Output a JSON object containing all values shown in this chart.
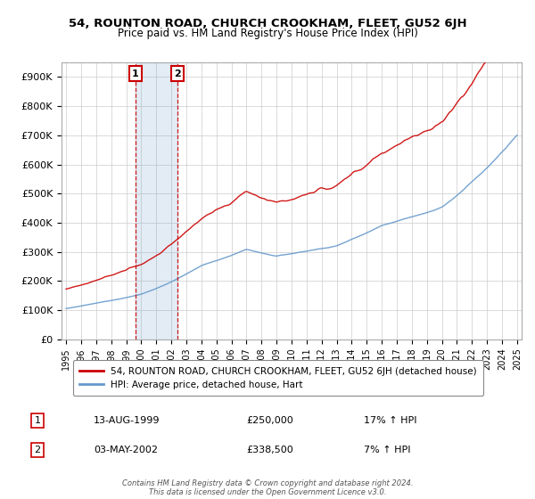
{
  "title": "54, ROUNTON ROAD, CHURCH CROOKHAM, FLEET, GU52 6JH",
  "subtitle": "Price paid vs. HM Land Registry's House Price Index (HPI)",
  "ylim": [
    0,
    950000
  ],
  "yticks": [
    0,
    100000,
    200000,
    300000,
    400000,
    500000,
    600000,
    700000,
    800000,
    900000
  ],
  "ytick_labels": [
    "£0",
    "£100K",
    "£200K",
    "£300K",
    "£400K",
    "£500K",
    "£600K",
    "£700K",
    "£800K",
    "£900K"
  ],
  "legend_line1": "54, ROUNTON ROAD, CHURCH CROOKHAM, FLEET, GU52 6JH (detached house)",
  "legend_line2": "HPI: Average price, detached house, Hart",
  "footnote": "Contains HM Land Registry data © Crown copyright and database right 2024.\nThis data is licensed under the Open Government Licence v3.0.",
  "line_color_price": "#cc0000",
  "line_color_hpi": "#6699cc",
  "bg_color": "#ffffff",
  "grid_color": "#cccccc",
  "marker1_x": 1999.619,
  "marker2_x": 2002.419,
  "t1_label": "13-AUG-1999",
  "t1_price": "£250,000",
  "t1_pct": "17% ↑ HPI",
  "t2_label": "03-MAY-2002",
  "t2_price": "£338,500",
  "t2_pct": "7% ↑ HPI"
}
